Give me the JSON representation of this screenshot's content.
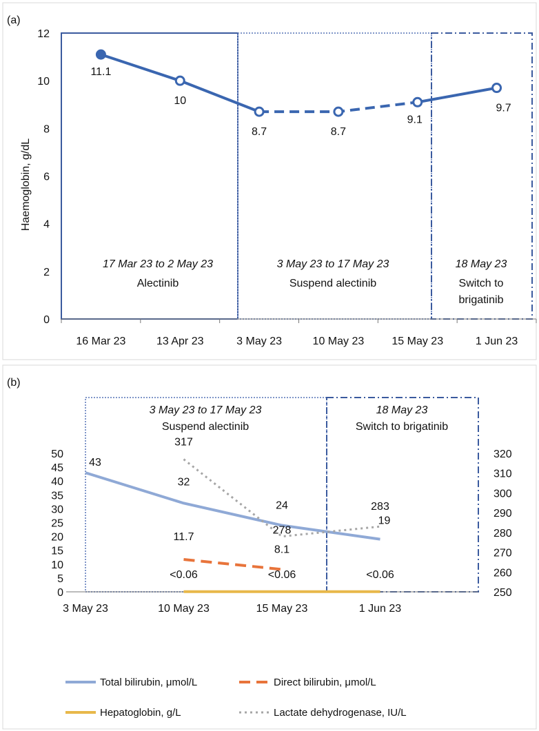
{
  "chart_data": [
    {
      "panel_label": "(a)",
      "type": "line",
      "title": "",
      "ylabel": "Haemoglobin, g/dL",
      "xlabel": "",
      "ylim": [
        0,
        12
      ],
      "yticks": [
        "0",
        "2",
        "4",
        "6",
        "8",
        "10",
        "12"
      ],
      "categories": [
        "16 Mar 23",
        "13 Apr 23",
        "3 May 23",
        "10 May 23",
        "15 May 23",
        "1 Jun 23"
      ],
      "series": [
        {
          "values": [
            11.1,
            10,
            8.7,
            8.7,
            9.1,
            9.7
          ],
          "labels": [
            "11.1",
            "10",
            "8.7",
            "8.7",
            "9.1",
            "9.7"
          ],
          "color": "#3a66b0"
        }
      ],
      "phases": [
        {
          "dates": "17 Mar 23 to 2 May 23",
          "label": "Alectinib"
        },
        {
          "dates": "3 May 23 to 17 May 23",
          "label": "Suspend alectinib"
        },
        {
          "dates": "18 May 23",
          "label_line1": "Switch to",
          "label_line2": "brigatinib"
        }
      ],
      "grid": false
    },
    {
      "panel_label": "(b)",
      "type": "line",
      "title": "",
      "categories": [
        "3 May 23",
        "10 May 23",
        "15 May 23",
        "1 Jun 23"
      ],
      "ylim_left": [
        0,
        50
      ],
      "yticks_left": [
        "0",
        "5",
        "10",
        "15",
        "20",
        "25",
        "30",
        "35",
        "40",
        "45",
        "50"
      ],
      "ylim_right": [
        250,
        320
      ],
      "yticks_right": [
        "250",
        "260",
        "270",
        "280",
        "290",
        "300",
        "310",
        "320"
      ],
      "series": [
        {
          "name": "Total bilirubin, μmol/L",
          "axis": "left",
          "values": [
            43,
            32,
            24,
            19
          ],
          "labels": [
            "43",
            "32",
            "24",
            "19"
          ],
          "color": "#8fa9d6"
        },
        {
          "name": "Direct bilirubin, μmol/L",
          "axis": "left",
          "values": [
            null,
            11.7,
            8.1,
            null
          ],
          "labels": [
            "",
            "11.7",
            "8.1",
            ""
          ],
          "color": "#e8743b"
        },
        {
          "name": "Hepatoglobin, g/L",
          "axis": "left",
          "values": [
            null,
            0.06,
            0.06,
            0.06
          ],
          "labels": [
            "",
            "<0.06",
            "<0.06",
            "<0.06"
          ],
          "color": "#e8b84a"
        },
        {
          "name": "Lactate dehydrogenase, IU/L",
          "axis": "right",
          "values": [
            null,
            317,
            278,
            283
          ],
          "labels": [
            "",
            "317",
            "278",
            "283"
          ],
          "color": "#a6a6a6"
        }
      ],
      "phases": [
        {
          "dates": "3 May 23 to 17 May 23",
          "label": "Suspend alectinib"
        },
        {
          "dates": "18 May 23",
          "label": "Switch to brigatinib"
        }
      ],
      "legend_position": "bottom",
      "grid": false
    }
  ]
}
